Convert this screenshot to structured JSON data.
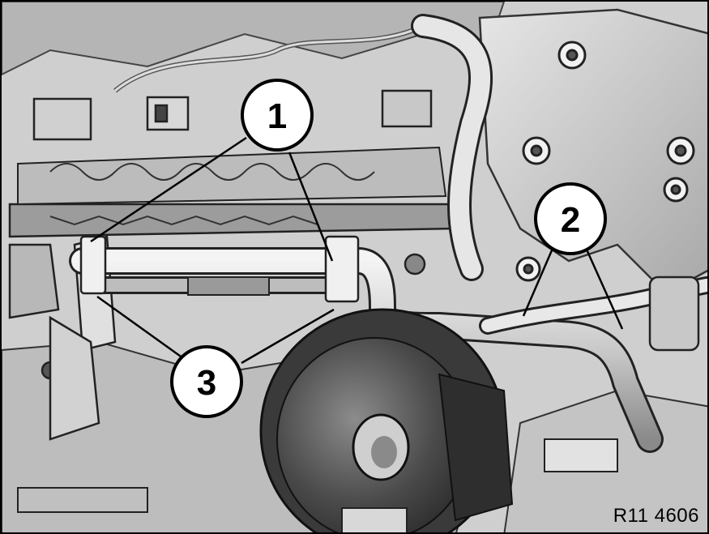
{
  "diagram": {
    "callouts": [
      {
        "id": "callout-1",
        "label": "1"
      },
      {
        "id": "callout-2",
        "label": "2"
      },
      {
        "id": "callout-3",
        "label": "3"
      }
    ],
    "reference": "R11 4606"
  }
}
